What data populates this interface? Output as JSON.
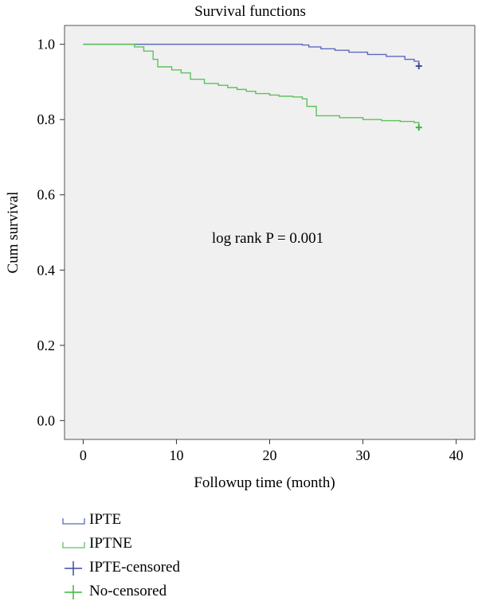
{
  "chart_data": {
    "type": "line",
    "step": true,
    "title": "Survival functions",
    "xlabel": "Followup time (month)",
    "ylabel": "Cum survival",
    "xlim": [
      -2,
      42
    ],
    "ylim": [
      -0.05,
      1.05
    ],
    "xticks": [
      0,
      10,
      20,
      30,
      40
    ],
    "yticks": [
      0.0,
      0.2,
      0.4,
      0.6,
      0.8,
      1.0
    ],
    "xtick_labels": [
      "0",
      "10",
      "20",
      "30",
      "40"
    ],
    "ytick_labels": [
      "0.0",
      "0.2",
      "0.4",
      "0.6",
      "0.8",
      "1.0"
    ],
    "annotation": "log rank P = 0.001",
    "grid": false,
    "background": "#f0f0f0",
    "series": [
      {
        "name": "IPTE",
        "color": "#5b6bbf",
        "points": [
          [
            0,
            1.0
          ],
          [
            22.8,
            1.0
          ],
          [
            23.5,
            0.998
          ],
          [
            24.2,
            0.993
          ],
          [
            25.5,
            0.988
          ],
          [
            27,
            0.984
          ],
          [
            28.5,
            0.979
          ],
          [
            30.5,
            0.973
          ],
          [
            32.5,
            0.968
          ],
          [
            34.5,
            0.96
          ],
          [
            35.5,
            0.955
          ],
          [
            36,
            0.945
          ]
        ],
        "censored": [
          [
            36,
            0.942
          ]
        ],
        "censor_color": "#3a4fa6"
      },
      {
        "name": "IPTNE",
        "color": "#5cc25c",
        "points": [
          [
            0,
            1.0
          ],
          [
            5.5,
            0.993
          ],
          [
            6.5,
            0.982
          ],
          [
            7.5,
            0.96
          ],
          [
            8,
            0.94
          ],
          [
            9.5,
            0.932
          ],
          [
            10.5,
            0.924
          ],
          [
            11.5,
            0.907
          ],
          [
            13,
            0.896
          ],
          [
            14.5,
            0.891
          ],
          [
            15.5,
            0.885
          ],
          [
            16.5,
            0.88
          ],
          [
            17.5,
            0.875
          ],
          [
            18.5,
            0.869
          ],
          [
            20,
            0.865
          ],
          [
            21,
            0.862
          ],
          [
            22.5,
            0.86
          ],
          [
            23.5,
            0.855
          ],
          [
            24,
            0.835
          ],
          [
            25,
            0.81
          ],
          [
            27.5,
            0.805
          ],
          [
            30,
            0.8
          ],
          [
            32,
            0.797
          ],
          [
            34,
            0.795
          ],
          [
            35.5,
            0.792
          ],
          [
            36,
            0.785
          ]
        ],
        "censored": [
          [
            36,
            0.779
          ]
        ],
        "censor_color": "#3cb83c"
      }
    ],
    "legend": [
      {
        "label": "IPTE",
        "kind": "line",
        "color": "#5b6bbf"
      },
      {
        "label": "IPTNE",
        "kind": "line",
        "color": "#5cc25c"
      },
      {
        "label": "IPTE-censored",
        "kind": "plus",
        "color": "#3a4fa6"
      },
      {
        "label": "No-censored",
        "kind": "plus",
        "color": "#3cb83c"
      }
    ]
  }
}
